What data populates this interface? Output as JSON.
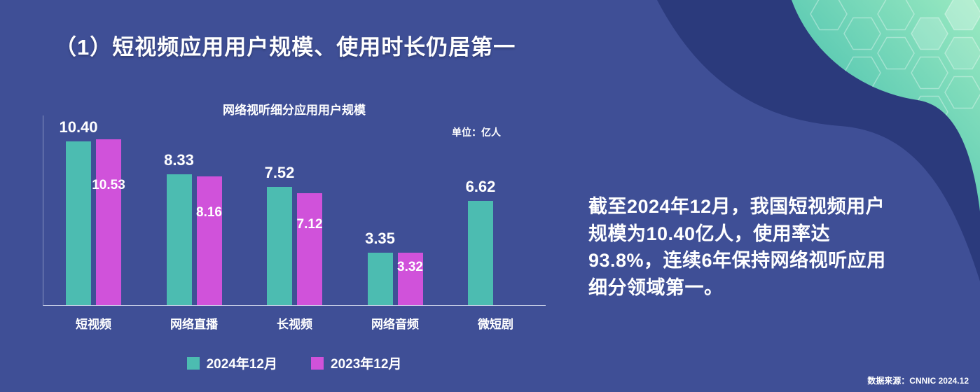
{
  "page": {
    "title": "（1）短视频应用用户规模、使用时长仍居第一",
    "source": "数据来源：CNNIC 2024.12"
  },
  "chart": {
    "title": "网络视听细分应用用户规模",
    "unit_label": "单位：亿人"
  },
  "chart_data": {
    "type": "bar",
    "title": "网络视听细分应用用户规模",
    "unit": "亿人",
    "categories": [
      "短视频",
      "网络直播",
      "长视频",
      "网络音频",
      "微短剧"
    ],
    "series": [
      {
        "name": "2024年12月",
        "color": "#4CBCB1",
        "values": [
          10.4,
          8.33,
          7.52,
          3.35,
          6.62
        ]
      },
      {
        "name": "2023年12月",
        "color": "#D052DA",
        "values": [
          10.53,
          8.16,
          7.12,
          3.32,
          null
        ]
      }
    ],
    "ylim": [
      0,
      11
    ],
    "grid": false,
    "legend_position": "bottom",
    "value_labels": "two_decimals"
  },
  "highlight": {
    "text": "截至2024年12月，我国短视频用户规模为10.40亿人，使用率达93.8%，连续6年保持网络视听应用细分领域第一。"
  },
  "colors": {
    "background": "#3F4F96",
    "corner_dark": "#2B3A7C",
    "wave_gradient_start": "#2FB3A9",
    "wave_gradient_end": "#9BEAC1",
    "bar_2024": "#4CBCB1",
    "bar_2023": "#D052DA",
    "text": "#FFFFFF",
    "axis": "#DDE4F6"
  }
}
